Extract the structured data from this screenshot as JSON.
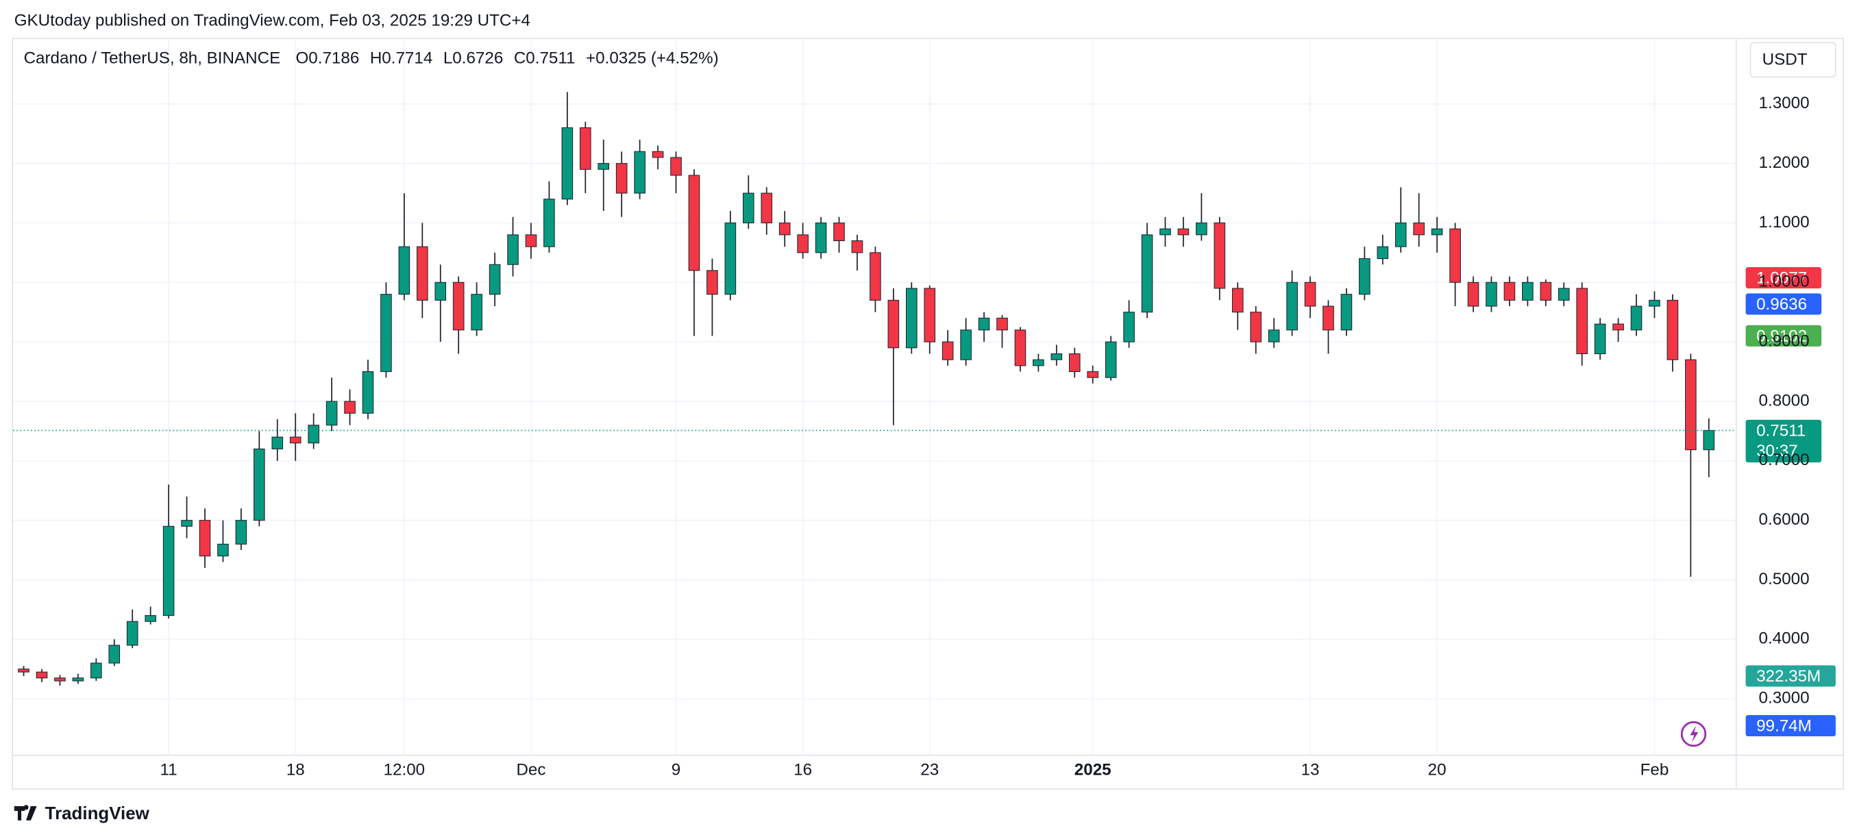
{
  "header": {
    "published": "GKUtoday published on TradingView.com, Feb 03, 2025 19:29 UTC+4",
    "brand": "TradingView"
  },
  "chart_data": {
    "type": "candlestick",
    "title": "Cardano / TetherUS, 8h, BINANCE",
    "legend_values": [
      "O0.7186",
      "H0.7714",
      "L0.6726",
      "C0.7511",
      "+0.0325 (+4.52%)"
    ],
    "currency": "USDT",
    "categories": [
      null,
      null,
      null,
      null,
      null,
      null,
      null,
      null,
      "11",
      null,
      null,
      null,
      null,
      null,
      null,
      "18",
      null,
      null,
      null,
      null,
      null,
      "12:00",
      null,
      null,
      null,
      null,
      null,
      null,
      "Dec",
      null,
      null,
      null,
      null,
      null,
      null,
      null,
      "9",
      null,
      null,
      null,
      null,
      null,
      null,
      "16",
      null,
      null,
      null,
      null,
      null,
      null,
      "23",
      null,
      null,
      null,
      null,
      null,
      null,
      null,
      null,
      "2025",
      null,
      null,
      null,
      null,
      null,
      null,
      null,
      null,
      null,
      null,
      null,
      "13",
      null,
      null,
      null,
      null,
      null,
      null,
      "20",
      null,
      null,
      null,
      null,
      null,
      null,
      null,
      null,
      null,
      null,
      null,
      "Feb",
      null,
      null,
      null
    ],
    "open": [
      0.35,
      0.345,
      0.335,
      0.33,
      0.335,
      0.36,
      0.39,
      0.43,
      0.44,
      0.59,
      0.6,
      0.54,
      0.56,
      0.6,
      0.72,
      0.74,
      0.73,
      0.76,
      0.8,
      0.78,
      0.85,
      0.98,
      1.06,
      0.97,
      1.0,
      0.92,
      0.98,
      1.03,
      1.08,
      1.06,
      1.14,
      1.26,
      1.19,
      1.2,
      1.15,
      1.22,
      1.21,
      1.18,
      1.02,
      0.98,
      1.1,
      1.15,
      1.1,
      1.08,
      1.05,
      1.1,
      1.07,
      1.05,
      0.97,
      0.89,
      0.99,
      0.9,
      0.87,
      0.92,
      0.94,
      0.92,
      0.86,
      0.87,
      0.88,
      0.85,
      0.84,
      0.9,
      0.95,
      1.08,
      1.09,
      1.08,
      1.1,
      0.99,
      0.95,
      0.9,
      0.92,
      1.0,
      0.96,
      0.92,
      0.98,
      1.04,
      1.06,
      1.1,
      1.08,
      1.09,
      1.0,
      0.96,
      1.0,
      0.97,
      1.0,
      0.97,
      0.99,
      0.88,
      0.93,
      0.92,
      0.96,
      0.97,
      0.87,
      0.7186
    ],
    "high": [
      0.355,
      0.35,
      0.34,
      0.342,
      0.368,
      0.4,
      0.45,
      0.455,
      0.66,
      0.64,
      0.62,
      0.6,
      0.62,
      0.75,
      0.77,
      0.78,
      0.78,
      0.84,
      0.82,
      0.87,
      1.0,
      1.15,
      1.1,
      1.03,
      1.01,
      1.0,
      1.05,
      1.11,
      1.1,
      1.17,
      1.32,
      1.27,
      1.24,
      1.22,
      1.24,
      1.23,
      1.22,
      1.19,
      1.04,
      1.12,
      1.18,
      1.16,
      1.12,
      1.1,
      1.11,
      1.11,
      1.08,
      1.06,
      0.99,
      1.0,
      0.995,
      0.92,
      0.94,
      0.95,
      0.945,
      0.925,
      0.88,
      0.895,
      0.89,
      0.86,
      0.91,
      0.97,
      1.1,
      1.11,
      1.11,
      1.15,
      1.11,
      1.0,
      0.96,
      0.94,
      1.02,
      1.01,
      0.97,
      0.99,
      1.06,
      1.08,
      1.16,
      1.15,
      1.11,
      1.1,
      1.01,
      1.01,
      1.01,
      1.01,
      1.005,
      1.0,
      1.0,
      0.94,
      0.94,
      0.98,
      0.985,
      0.98,
      0.88,
      0.7714
    ],
    "low": [
      0.338,
      0.328,
      0.322,
      0.325,
      0.33,
      0.355,
      0.385,
      0.425,
      0.435,
      0.57,
      0.52,
      0.53,
      0.55,
      0.59,
      0.7,
      0.7,
      0.72,
      0.75,
      0.76,
      0.77,
      0.84,
      0.97,
      0.94,
      0.9,
      0.88,
      0.91,
      0.96,
      1.01,
      1.04,
      1.05,
      1.13,
      1.15,
      1.12,
      1.11,
      1.14,
      1.19,
      1.15,
      0.91,
      0.91,
      0.97,
      1.09,
      1.08,
      1.06,
      1.04,
      1.04,
      1.05,
      1.02,
      0.95,
      0.76,
      0.88,
      0.88,
      0.86,
      0.86,
      0.9,
      0.89,
      0.85,
      0.85,
      0.86,
      0.84,
      0.83,
      0.835,
      0.89,
      0.94,
      1.06,
      1.06,
      1.07,
      0.97,
      0.92,
      0.88,
      0.89,
      0.91,
      0.94,
      0.88,
      0.91,
      0.97,
      1.03,
      1.05,
      1.06,
      1.05,
      0.96,
      0.95,
      0.95,
      0.96,
      0.96,
      0.96,
      0.96,
      0.86,
      0.87,
      0.9,
      0.91,
      0.94,
      0.85,
      0.505,
      0.6726
    ],
    "close": [
      0.345,
      0.335,
      0.33,
      0.335,
      0.36,
      0.39,
      0.43,
      0.44,
      0.59,
      0.6,
      0.54,
      0.56,
      0.6,
      0.72,
      0.74,
      0.73,
      0.76,
      0.8,
      0.78,
      0.85,
      0.98,
      1.06,
      0.97,
      1.0,
      0.92,
      0.98,
      1.03,
      1.08,
      1.06,
      1.14,
      1.26,
      1.19,
      1.2,
      1.15,
      1.22,
      1.21,
      1.18,
      1.02,
      0.98,
      1.1,
      1.15,
      1.1,
      1.08,
      1.05,
      1.1,
      1.07,
      1.05,
      0.97,
      0.89,
      0.99,
      0.9,
      0.87,
      0.92,
      0.94,
      0.92,
      0.86,
      0.87,
      0.88,
      0.85,
      0.84,
      0.9,
      0.95,
      1.08,
      1.09,
      1.08,
      1.1,
      0.99,
      0.95,
      0.9,
      0.92,
      1.0,
      0.96,
      0.92,
      0.98,
      1.04,
      1.06,
      1.1,
      1.08,
      1.09,
      1.0,
      0.96,
      1.0,
      0.97,
      1.0,
      0.97,
      0.99,
      0.88,
      0.93,
      0.92,
      0.96,
      0.97,
      0.87,
      0.7186,
      0.7511
    ],
    "up_color": "#089981",
    "down_color": "#f23645",
    "ylim": [
      0.205,
      1.409
    ],
    "yticks": [
      {
        "value": 0.3,
        "label": "0.3000"
      },
      {
        "value": 0.4,
        "label": "0.4000"
      },
      {
        "value": 0.5,
        "label": "0.5000"
      },
      {
        "value": 0.6,
        "label": "0.6000"
      },
      {
        "value": 0.7,
        "label": "0.7000"
      },
      {
        "value": 0.8,
        "label": "0.8000"
      },
      {
        "value": 0.9,
        "label": "0.9000"
      },
      {
        "value": 1.0,
        "label": "1.0000"
      },
      {
        "value": 1.1,
        "label": "1.1000"
      },
      {
        "value": 1.2,
        "label": "1.2000"
      },
      {
        "value": 1.3,
        "label": "1.3000"
      }
    ],
    "grid": true,
    "last_price": {
      "value": 0.7511,
      "countdown": "30:37",
      "color": "#089981"
    },
    "price_badges": [
      {
        "value": 1.0077,
        "color": "#f23645"
      },
      {
        "value": 0.9636,
        "color": "#2962ff"
      },
      {
        "value": 0.9102,
        "color": "#4caf50"
      }
    ],
    "volume_badges": [
      {
        "label": "322.35M",
        "color": "#26a69a"
      },
      {
        "label": "99.74M",
        "color": "#2962ff"
      }
    ]
  }
}
